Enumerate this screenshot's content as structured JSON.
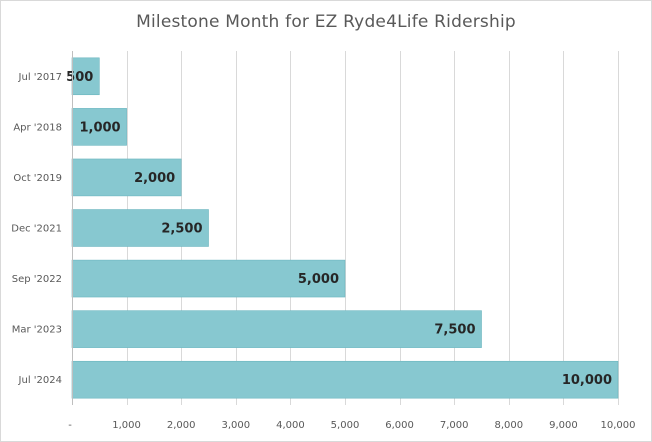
{
  "chart_data": {
    "type": "bar",
    "orientation": "horizontal",
    "title": "Milestone Month for EZ Ryde4Life Ridership",
    "xlabel": "",
    "ylabel": "",
    "categories": [
      "Jul '2017",
      "Apr '2018",
      "Oct '2019",
      "Dec '2021",
      "Sep '2022",
      "Mar '2023",
      "Jul '2024"
    ],
    "values": [
      500,
      1000,
      2000,
      2500,
      5000,
      7500,
      10000
    ],
    "value_labels": [
      "500",
      "1,000",
      "2,000",
      "2,500",
      "5,000",
      "7,500",
      "10,000"
    ],
    "xlim": [
      0,
      10000
    ],
    "x_ticks": [
      0,
      1000,
      2000,
      3000,
      4000,
      5000,
      6000,
      7000,
      8000,
      9000,
      10000
    ],
    "x_tick_labels": [
      "-",
      "1,000",
      "2,000",
      "3,000",
      "4,000",
      "5,000",
      "6,000",
      "7,000",
      "8,000",
      "9,000",
      "10,000"
    ],
    "grid": true,
    "legend": "none",
    "colors": {
      "bar_fill": "#87c8d0",
      "bar_stroke": "#6ab5bf",
      "grid": "#d9d9d9",
      "axis": "#bfbfbf",
      "tick_text": "#595959",
      "data_label_text": "#262626"
    }
  }
}
